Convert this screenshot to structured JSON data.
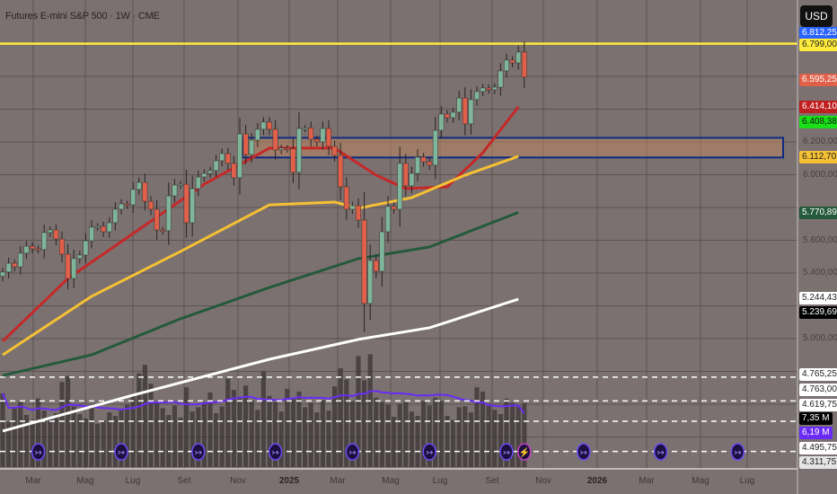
{
  "header": {
    "title": "Futures E-mini S&P 500 · 1W · CME",
    "currency_button": "USD"
  },
  "price_axis": {
    "ticks": [
      "6.200,00",
      "6.000,00",
      "5.600,00",
      "5.400,00",
      "5.000,00"
    ],
    "tick_values": [
      6200,
      6000,
      5600,
      5400,
      5000
    ],
    "labels": [
      {
        "text": "6.812,25",
        "bg": "#2962ff",
        "fg": "#ffffff",
        "slot": 0
      },
      {
        "text": "6.799,00",
        "bg": "#ffeb3b",
        "fg": "#222222",
        "slot": 1
      },
      {
        "text": "6.595,25",
        "bg": "#e0604a",
        "fg": "#ffffff",
        "slot": 2
      },
      {
        "text": "6.414,10",
        "bg": "#c01f1f",
        "fg": "#ffffff",
        "slot": 3
      },
      {
        "text": "6.408,38",
        "bg": "#19e019",
        "fg": "#111111",
        "slot": 4
      },
      {
        "text": "6.112,70",
        "bg": "#f5c034",
        "fg": "#222222",
        "slot": 5
      },
      {
        "text": "5.770,89",
        "bg": "#245a3b",
        "fg": "#ffffff",
        "slot": 6
      },
      {
        "text": "5.244,43",
        "bg": "#ffffff",
        "fg": "#222222",
        "slot": 7
      },
      {
        "text": "5.239,69",
        "bg": "#000000",
        "fg": "#ffffff",
        "slot": 8
      },
      {
        "text": "4.765,25",
        "bg": "#ffffff",
        "fg": "#222222",
        "slot": 9
      },
      {
        "text": "4.763,00",
        "bg": "#ffffff",
        "fg": "#222222",
        "slot": 10
      },
      {
        "text": "4.619,75",
        "bg": "#ffffff",
        "fg": "#222222",
        "slot": 11
      },
      {
        "text": "7,35 M",
        "bg": "#000000",
        "fg": "#ffffff",
        "slot": 12
      },
      {
        "text": "6,19 M",
        "bg": "#6a2cf5",
        "fg": "#ffffff",
        "slot": 13
      },
      {
        "text": "4.495,75",
        "bg": "#ffffff",
        "fg": "#222222",
        "slot": 14
      },
      {
        "text": "4.311,75",
        "bg": "#e4e4e4",
        "fg": "#222222",
        "slot": 15
      }
    ]
  },
  "time_axis": {
    "labels": [
      {
        "text": "Mar",
        "year": false
      },
      {
        "text": "Mag",
        "year": false
      },
      {
        "text": "Lug",
        "year": false
      },
      {
        "text": "Set",
        "year": false
      },
      {
        "text": "Nov",
        "year": false
      },
      {
        "text": "2025",
        "year": true
      },
      {
        "text": "Mar",
        "year": false
      },
      {
        "text": "Mag",
        "year": false
      },
      {
        "text": "Lug",
        "year": false
      },
      {
        "text": "Set",
        "year": false
      },
      {
        "text": "Nov",
        "year": false
      },
      {
        "text": "2026",
        "year": true
      },
      {
        "text": "Mar",
        "year": false
      },
      {
        "text": "Mag",
        "year": false
      },
      {
        "text": "Lug",
        "year": false
      }
    ]
  },
  "colors": {
    "up": "#7fb59a",
    "down": "#e0604a",
    "background": "#7b7171",
    "grid": "#5e5353",
    "volume": "#3b3434",
    "volume_ma": "#6a2cf5"
  },
  "chart_data": {
    "type": "candlestick",
    "interval": "1W",
    "closes": [
      5406,
      5460,
      5438,
      5521,
      5564,
      5548,
      5543,
      5647,
      5663,
      5608,
      5515,
      5367,
      5488,
      5510,
      5597,
      5680,
      5685,
      5652,
      5707,
      5789,
      5822,
      5816,
      5910,
      5953,
      5838,
      5789,
      5663,
      5658,
      5871,
      5937,
      5942,
      5707,
      5915,
      5986,
      6008,
      6025,
      6085,
      6129,
      6069,
      5981,
      6249,
      6123,
      6211,
      6277,
      6321,
      6277,
      6151,
      6162,
      6158,
      6014,
      6282,
      6285,
      6216,
      6200,
      6282,
      6173,
      6118,
      5926,
      5789,
      5811,
      5723,
      5214,
      5477,
      5411,
      5652,
      5806,
      5789,
      6069,
      5932,
      6008,
      6107,
      6079,
      6058,
      6271,
      6370,
      6348,
      6381,
      6468,
      6310,
      6458,
      6507,
      6529,
      6518,
      6534,
      6633,
      6699,
      6682,
      6748,
      6595
    ],
    "first_open": 5380,
    "volumes_millions": [
      8.5,
      5.2,
      6.8,
      7.5,
      6.0,
      5.5,
      7.9,
      6.5,
      5.8,
      6.2,
      9.8,
      10.5,
      7.0,
      6.1,
      5.6,
      6.9,
      5.0,
      5.4,
      6.3,
      5.9,
      6.6,
      7.2,
      8.4,
      10.8,
      11.8,
      9.6,
      7.4,
      6.8,
      6.0,
      7.1,
      5.7,
      9.2,
      6.4,
      6.9,
      7.5,
      8.6,
      6.2,
      7.0,
      10.2,
      8.9,
      8.1,
      9.4,
      7.7,
      6.6,
      11.0,
      8.2,
      7.5,
      6.4,
      9.0,
      7.9,
      8.7,
      6.9,
      7.4,
      6.3,
      7.7,
      6.5,
      9.3,
      11.4,
      10.1,
      7.6,
      12.8,
      10.0,
      13.0,
      8.0,
      7.5,
      7.2,
      5.8,
      7.3,
      7.5,
      6.4,
      5.9,
      7.6,
      7.1,
      8.0,
      7.6,
      5.9,
      5.4,
      6.9,
      7.0,
      6.3,
      9.2,
      8.7,
      7.3,
      6.6,
      6.1,
      7.9,
      7.4,
      7.1,
      7.35
    ],
    "volume_ma_last": 6.19,
    "moving_averages": [
      {
        "color": "#c62828",
        "last": 6414.1,
        "points": [
          [
            0,
            4984
          ],
          [
            11,
            5367
          ],
          [
            22,
            5641
          ],
          [
            34,
            5942
          ],
          [
            45,
            6162
          ],
          [
            56,
            6162
          ],
          [
            63,
            5997
          ],
          [
            68,
            5915
          ],
          [
            75,
            5926
          ],
          [
            81,
            6134
          ],
          [
            87,
            6414
          ]
        ]
      },
      {
        "color": "#f5c034",
        "last": 6112.7,
        "points": [
          [
            0,
            4901
          ],
          [
            15,
            5258
          ],
          [
            30,
            5532
          ],
          [
            45,
            5816
          ],
          [
            56,
            5833
          ],
          [
            60,
            5795
          ],
          [
            69,
            5860
          ],
          [
            78,
            5997
          ],
          [
            87,
            6112
          ]
        ]
      },
      {
        "color": "#245a3b",
        "last": 5770.89,
        "points": [
          [
            0,
            4775
          ],
          [
            15,
            4901
          ],
          [
            30,
            5121
          ],
          [
            45,
            5312
          ],
          [
            60,
            5488
          ],
          [
            72,
            5559
          ],
          [
            87,
            5770
          ]
        ]
      },
      {
        "color": "#ffffff",
        "last": 5244.43,
        "points": [
          [
            0,
            4436
          ],
          [
            22,
            4655
          ],
          [
            45,
            4874
          ],
          [
            60,
            4995
          ],
          [
            72,
            5066
          ],
          [
            87,
            5241
          ]
        ]
      }
    ],
    "horizontal_levels": [
      {
        "price": 6799.0,
        "color": "#ffeb3b",
        "style": "solid"
      },
      {
        "price": 4765.25,
        "color": "#ffffff",
        "style": "dashed"
      },
      {
        "price": 4619.75,
        "color": "#ffffff",
        "style": "dashed"
      },
      {
        "price": 4495.75,
        "color": "#ffffff",
        "style": "dashed"
      },
      {
        "price": 4311.75,
        "color": "#ffffff",
        "style": "dashed"
      }
    ],
    "zone": {
      "top": 6225,
      "bottom": 6105,
      "border": "#0d2a80",
      "fill": "#c98a5a"
    },
    "events": [
      {
        "week": 6,
        "type": "rollover"
      },
      {
        "week": 20,
        "type": "rollover"
      },
      {
        "week": 33,
        "type": "rollover"
      },
      {
        "week": 46,
        "type": "rollover"
      },
      {
        "week": 59,
        "type": "rollover"
      },
      {
        "week": 72,
        "type": "rollover"
      },
      {
        "week": 85,
        "type": "rollover"
      },
      {
        "week": 88,
        "type": "lightning"
      },
      {
        "week": 98,
        "type": "rollover"
      },
      {
        "week": 111,
        "type": "rollover"
      },
      {
        "week": 124,
        "type": "rollover"
      }
    ]
  }
}
